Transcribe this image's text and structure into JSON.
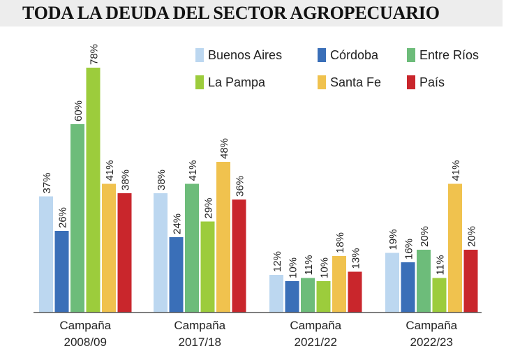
{
  "title": "TODA LA DEUDA DEL SECTOR AGROPECUARIO",
  "chart_data": {
    "type": "bar",
    "title": "TODA LA DEUDA DEL SECTOR AGROPECUARIO",
    "categories": [
      [
        "Campaña",
        "2008/09"
      ],
      [
        "Campaña",
        "2017/18"
      ],
      [
        "Campaña",
        "2021/22"
      ],
      [
        "Campaña",
        "2022/23"
      ]
    ],
    "value_suffix": "%",
    "ylim": [
      0,
      78
    ],
    "grid": false,
    "legend_position": "top-right",
    "series": [
      {
        "name": "Buenos Aires",
        "color": "#bcd7f0",
        "values": [
          37,
          38,
          12,
          19
        ]
      },
      {
        "name": "Córdoba",
        "color": "#3a6fb8",
        "values": [
          26,
          24,
          10,
          16
        ]
      },
      {
        "name": "Entre Ríos",
        "color": "#6dbc7a",
        "values": [
          60,
          41,
          11,
          20
        ]
      },
      {
        "name": "La Pampa",
        "color": "#9ccc3c",
        "values": [
          78,
          29,
          10,
          11
        ]
      },
      {
        "name": "Santa Fe",
        "color": "#f0c24e",
        "values": [
          41,
          48,
          18,
          41
        ]
      },
      {
        "name": "País",
        "color": "#c9262c",
        "values": [
          38,
          36,
          13,
          20
        ]
      }
    ]
  }
}
